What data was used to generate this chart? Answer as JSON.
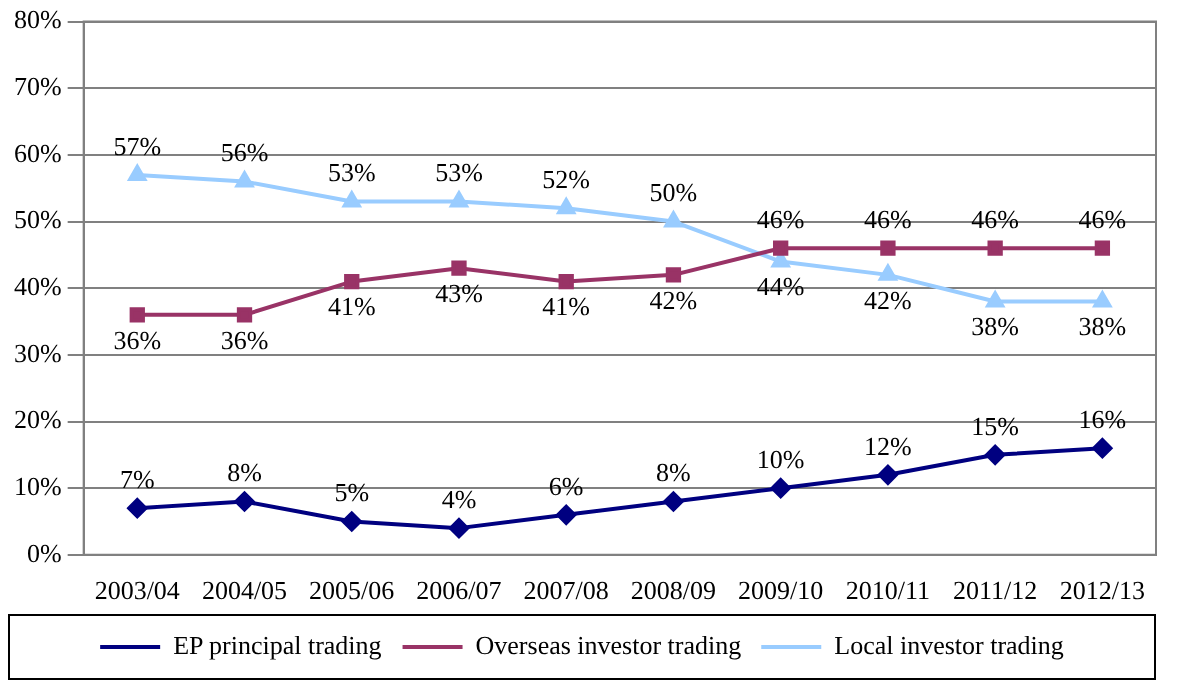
{
  "chart_data": {
    "type": "line",
    "categories": [
      "2003/04",
      "2004/05",
      "2005/06",
      "2006/07",
      "2007/08",
      "2008/09",
      "2009/10",
      "2010/11",
      "2011/12",
      "2012/13"
    ],
    "ylim": [
      0,
      80
    ],
    "yticks": [
      {
        "value": 0,
        "label": "0%"
      },
      {
        "value": 10,
        "label": "10%"
      },
      {
        "value": 20,
        "label": "20%"
      },
      {
        "value": 30,
        "label": "30%"
      },
      {
        "value": 40,
        "label": "40%"
      },
      {
        "value": 50,
        "label": "50%"
      },
      {
        "value": 60,
        "label": "60%"
      },
      {
        "value": 70,
        "label": "70%"
      },
      {
        "value": 80,
        "label": "80%"
      }
    ],
    "grid": "y",
    "legend": "bottom",
    "series": [
      {
        "name": "EP principal trading",
        "color": "#000080",
        "marker": "diamond",
        "values": [
          7,
          8,
          5,
          4,
          6,
          8,
          10,
          12,
          15,
          16
        ],
        "value_labels": [
          "7%",
          "8%",
          "5%",
          "4%",
          "6%",
          "8%",
          "10%",
          "12%",
          "15%",
          "16%"
        ]
      },
      {
        "name": "Overseas investor trading",
        "color": "#993366",
        "marker": "square",
        "values": [
          36,
          36,
          41,
          43,
          41,
          42,
          46,
          46,
          46,
          46
        ],
        "value_labels": [
          "36%",
          "36%",
          "41%",
          "43%",
          "41%",
          "42%",
          "46%",
          "46%",
          "46%",
          "46%"
        ]
      },
      {
        "name": "Local investor trading",
        "color": "#99ccff",
        "marker": "triangle",
        "values": [
          57,
          56,
          53,
          53,
          52,
          50,
          44,
          42,
          38,
          38
        ],
        "value_labels": [
          "57%",
          "56%",
          "53%",
          "53%",
          "52%",
          "50%",
          "44%",
          "42%",
          "38%",
          "38%"
        ]
      }
    ]
  }
}
